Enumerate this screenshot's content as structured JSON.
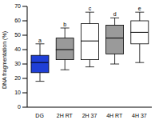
{
  "chart_data": {
    "type": "box",
    "y_label": "DNA fragmentation (%)",
    "categories": [
      "DG",
      "2H RT",
      "2H 37",
      "4H RT",
      "4H 37"
    ],
    "min": [
      18,
      26,
      28,
      30,
      31
    ],
    "q1": [
      24,
      33,
      33,
      37,
      44
    ],
    "median": [
      31,
      40,
      46,
      48,
      52
    ],
    "q3": [
      36,
      48,
      58,
      57,
      60
    ],
    "max": [
      44,
      55,
      66,
      62,
      66
    ],
    "annotations": [
      "a",
      "b",
      "c",
      "d",
      "e"
    ],
    "colors": [
      "#1f3fd6",
      "#9a9a9a",
      "#ffffff",
      "#9a9a9a",
      "#ffffff"
    ],
    "ylim": [
      0,
      70
    ],
    "yticks": [
      0,
      10,
      20,
      30,
      40,
      50,
      60,
      70
    ],
    "grid": false
  }
}
